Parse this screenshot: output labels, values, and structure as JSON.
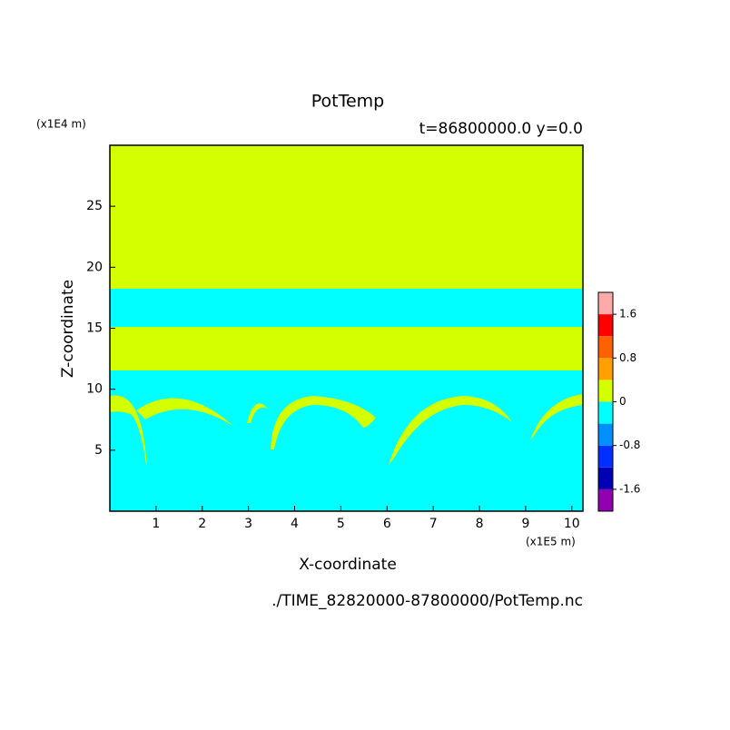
{
  "chart_data": {
    "type": "contour",
    "title": "PotTemp",
    "subtitle": "t=86800000.0 y=0.0",
    "x_label": "X-coordinate",
    "y_label": "Z-coordinate",
    "x_unit": "(x1E5 m)",
    "y_unit": "(x1E4 m)",
    "footer": "./TIME_82820000-87800000/PotTemp.nc",
    "xlim": [
      0,
      10.24
    ],
    "xticks": [
      1,
      2,
      3,
      4,
      5,
      6,
      7,
      8,
      9,
      10
    ],
    "ylim": [
      0,
      30
    ],
    "yticks": [
      5,
      10,
      15,
      20,
      25
    ],
    "colorbar": {
      "levels": [
        -2.0,
        -1.6,
        -1.2,
        -0.8,
        -0.4,
        0,
        0.4,
        0.8,
        1.2,
        1.6,
        2.0
      ],
      "colors": [
        "#9000b0",
        "#0000b4",
        "#0030ff",
        "#0090ff",
        "#00ffff",
        "#d4ff00",
        "#ffa000",
        "#ff6000",
        "#ff0000",
        "#ffaaaa"
      ],
      "ticks": [
        -1.6,
        -0.8,
        0,
        0.8,
        1.6
      ]
    }
  }
}
